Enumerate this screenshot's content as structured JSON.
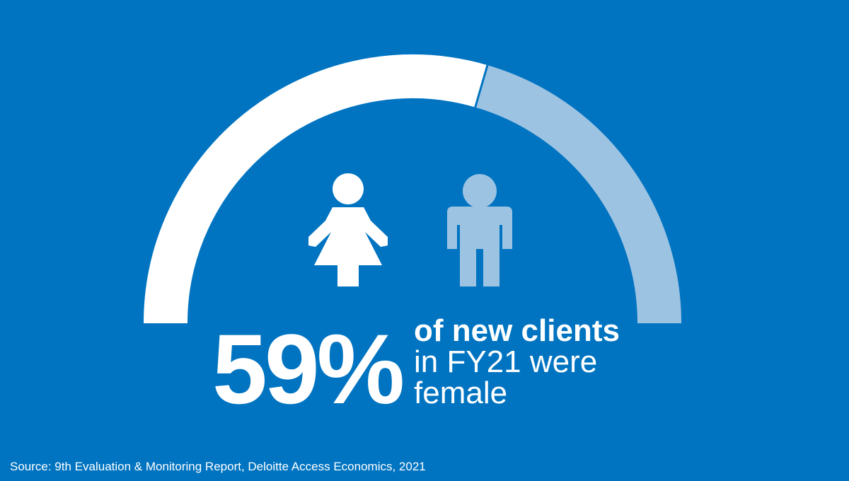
{
  "chart_data": {
    "type": "pie",
    "style": "semicircle-gauge",
    "categories": [
      "female",
      "male"
    ],
    "values": [
      59,
      41
    ],
    "value_unit": "%"
  },
  "headline": {
    "value_text": "59%",
    "line1": "of new clients",
    "line2": "in FY21 were",
    "line3": "female"
  },
  "icons": {
    "female": "female-person-icon",
    "male": "male-person-icon"
  },
  "source": "Source: 9th Evaluation & Monitoring Report, Deloitte Access Economics, 2021",
  "colors": {
    "background": "#0074C1",
    "female": "#FFFFFF",
    "male": "#9DC3E3"
  }
}
